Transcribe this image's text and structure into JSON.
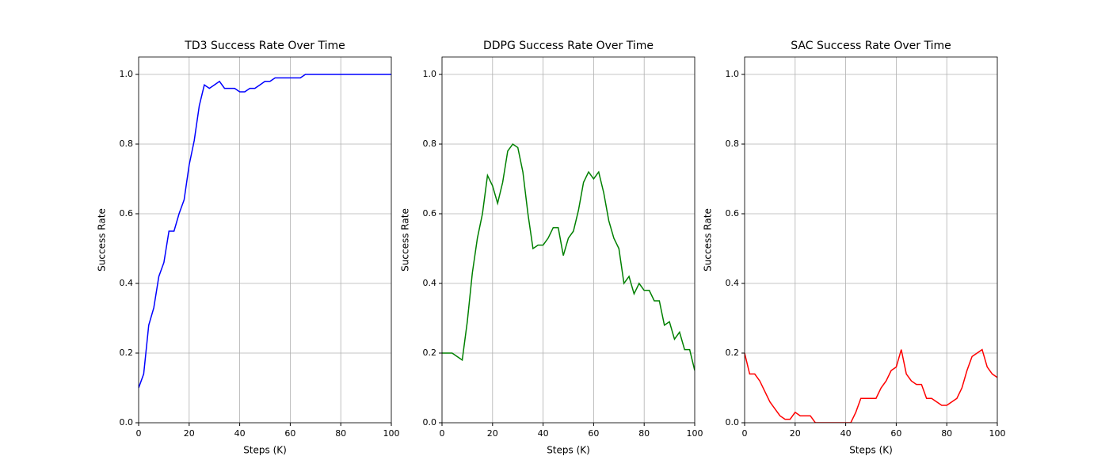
{
  "chart_data": [
    {
      "type": "line",
      "title": "TD3 Success Rate Over Time",
      "xlabel": "Steps (K)",
      "ylabel": "Success Rate",
      "x": [
        0,
        2,
        4,
        6,
        8,
        10,
        12,
        14,
        16,
        18,
        20,
        22,
        24,
        26,
        28,
        30,
        32,
        34,
        36,
        38,
        40,
        42,
        44,
        46,
        48,
        50,
        52,
        54,
        56,
        58,
        60,
        62,
        64,
        66,
        68,
        70,
        72,
        74,
        76,
        78,
        80,
        82,
        84,
        86,
        88,
        90,
        92,
        94,
        96,
        98,
        100
      ],
      "series": [
        {
          "color": "#0000ff",
          "values": [
            0.1,
            0.14,
            0.28,
            0.33,
            0.42,
            0.46,
            0.55,
            0.55,
            0.6,
            0.64,
            0.74,
            0.81,
            0.91,
            0.97,
            0.96,
            0.97,
            0.98,
            0.96,
            0.96,
            0.96,
            0.95,
            0.95,
            0.96,
            0.96,
            0.97,
            0.98,
            0.98,
            0.99,
            0.99,
            0.99,
            0.99,
            0.99,
            0.99,
            1.0,
            1.0,
            1.0,
            1.0,
            1.0,
            1.0,
            1.0,
            1.0,
            1.0,
            1.0,
            1.0,
            1.0,
            1.0,
            1.0,
            1.0,
            1.0,
            1.0,
            1.0
          ]
        }
      ],
      "xlim": [
        0,
        100
      ],
      "ylim": [
        0,
        1.05
      ],
      "xticks": [
        0,
        20,
        40,
        60,
        80,
        100
      ],
      "yticks": [
        {
          "value": 0,
          "label": "0.0"
        },
        {
          "value": 0.2,
          "label": "0.2"
        },
        {
          "value": 0.4,
          "label": "0.4"
        },
        {
          "value": 0.6,
          "label": "0.6"
        },
        {
          "value": 0.8,
          "label": "0.8"
        },
        {
          "value": 1,
          "label": "1.0"
        }
      ],
      "grid": true
    },
    {
      "type": "line",
      "title": "DDPG Success Rate Over Time",
      "xlabel": "Steps (K)",
      "ylabel": "Success Rate",
      "x": [
        0,
        2,
        4,
        6,
        8,
        10,
        12,
        14,
        16,
        18,
        20,
        22,
        24,
        26,
        28,
        30,
        32,
        34,
        36,
        38,
        40,
        42,
        44,
        46,
        48,
        50,
        52,
        54,
        56,
        58,
        60,
        62,
        64,
        66,
        68,
        70,
        72,
        74,
        76,
        78,
        80,
        82,
        84,
        86,
        88,
        90,
        92,
        94,
        96,
        98,
        100
      ],
      "series": [
        {
          "color": "#008000",
          "values": [
            0.2,
            0.2,
            0.2,
            0.19,
            0.18,
            0.29,
            0.43,
            0.53,
            0.6,
            0.71,
            0.68,
            0.63,
            0.69,
            0.78,
            0.8,
            0.79,
            0.72,
            0.6,
            0.5,
            0.51,
            0.51,
            0.53,
            0.56,
            0.56,
            0.48,
            0.53,
            0.55,
            0.61,
            0.69,
            0.72,
            0.7,
            0.72,
            0.66,
            0.58,
            0.53,
            0.5,
            0.4,
            0.42,
            0.37,
            0.4,
            0.38,
            0.38,
            0.35,
            0.35,
            0.28,
            0.29,
            0.24,
            0.26,
            0.21,
            0.21,
            0.15
          ]
        }
      ],
      "xlim": [
        0,
        100
      ],
      "ylim": [
        0,
        1.05
      ],
      "xticks": [
        0,
        20,
        40,
        60,
        80,
        100
      ],
      "yticks": [
        {
          "value": 0,
          "label": "0.0"
        },
        {
          "value": 0.2,
          "label": "0.2"
        },
        {
          "value": 0.4,
          "label": "0.4"
        },
        {
          "value": 0.6,
          "label": "0.6"
        },
        {
          "value": 0.8,
          "label": "0.8"
        },
        {
          "value": 1,
          "label": "1.0"
        }
      ],
      "grid": true
    },
    {
      "type": "line",
      "title": "SAC Success Rate Over Time",
      "xlabel": "Steps (K)",
      "ylabel": "Success Rate",
      "x": [
        0,
        2,
        4,
        6,
        8,
        10,
        12,
        14,
        16,
        18,
        20,
        22,
        24,
        26,
        28,
        30,
        32,
        34,
        36,
        38,
        40,
        42,
        44,
        46,
        48,
        50,
        52,
        54,
        56,
        58,
        60,
        62,
        64,
        66,
        68,
        70,
        72,
        74,
        76,
        78,
        80,
        82,
        84,
        86,
        88,
        90,
        92,
        94,
        96,
        98,
        100
      ],
      "series": [
        {
          "color": "#ff0000",
          "values": [
            0.2,
            0.14,
            0.14,
            0.12,
            0.09,
            0.06,
            0.04,
            0.02,
            0.01,
            0.01,
            0.03,
            0.02,
            0.02,
            0.02,
            0.0,
            0.0,
            0.0,
            0.0,
            0.0,
            0.0,
            0.0,
            0.0,
            0.03,
            0.07,
            0.07,
            0.07,
            0.07,
            0.1,
            0.12,
            0.15,
            0.16,
            0.21,
            0.14,
            0.12,
            0.11,
            0.11,
            0.07,
            0.07,
            0.06,
            0.05,
            0.05,
            0.06,
            0.07,
            0.1,
            0.15,
            0.19,
            0.2,
            0.21,
            0.16,
            0.14,
            0.13
          ]
        }
      ],
      "xlim": [
        0,
        100
      ],
      "ylim": [
        0,
        1.05
      ],
      "xticks": [
        0,
        20,
        40,
        60,
        80,
        100
      ],
      "yticks": [
        {
          "value": 0,
          "label": "0.0"
        },
        {
          "value": 0.2,
          "label": "0.2"
        },
        {
          "value": 0.4,
          "label": "0.4"
        },
        {
          "value": 0.6,
          "label": "0.6"
        },
        {
          "value": 0.8,
          "label": "0.8"
        },
        {
          "value": 1,
          "label": "1.0"
        }
      ],
      "grid": true
    }
  ]
}
